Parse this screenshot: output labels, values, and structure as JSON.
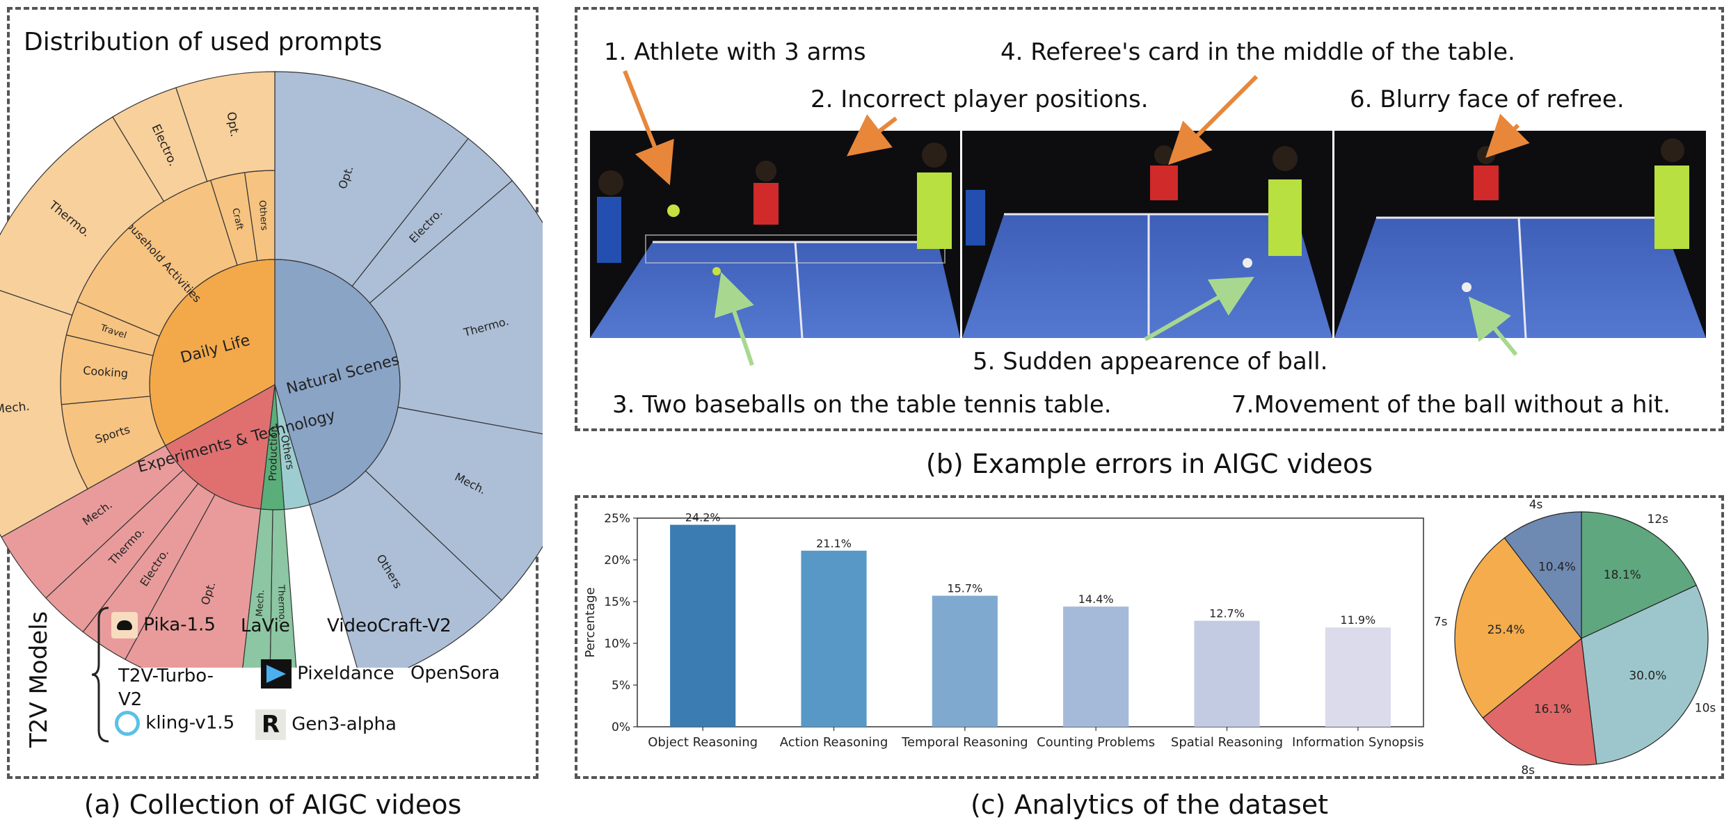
{
  "panel_a": {
    "title": "Distribution of used prompts",
    "caption": "(a) Collection of AIGC videos",
    "models_heading": "T2V Models",
    "models": [
      "Pika-1.5",
      "LaVie",
      "VideoCraft-V2",
      "T2V-Turbo-\nV2",
      "Pixeldance",
      "OpenSora",
      "kling-v1.5",
      "Gen3-alpha"
    ]
  },
  "panel_b": {
    "caption": "(b) Example errors in AIGC videos",
    "errors": [
      "1. Athlete with 3 arms",
      "2. Incorrect player positions.",
      "3. Two baseballs on the table tennis table.",
      "4. Referee's card in the middle of the table.",
      "5. Sudden appearence of ball.",
      "6. Blurry face of refree.",
      "7.Movement of the ball without a hit."
    ]
  },
  "panel_c": {
    "caption": "(c) Analytics of the dataset"
  },
  "chart_data": [
    {
      "type": "sunburst",
      "title": "Distribution of used prompts",
      "inner": [
        {
          "name": "Daily Life",
          "value": 33.1,
          "color": "#f3a94a"
        },
        {
          "name": "Natural Scenes",
          "value": 45.5,
          "color": "#8aa4c6"
        },
        {
          "name": "Others",
          "value": 3.3,
          "color": "#9dcdd0"
        },
        {
          "name": "Production",
          "value": 3.0,
          "color": "#5aae7a"
        },
        {
          "name": "Experiments & Technology",
          "value": 15.1,
          "color": "#e07070"
        }
      ],
      "outer": [
        {
          "name": "Sports",
          "parent": "Daily Life",
          "value": 5.6
        },
        {
          "name": "Cooking",
          "parent": "Daily Life",
          "value": 4.4
        },
        {
          "name": "Travel",
          "parent": "Daily Life",
          "value": 2.2
        },
        {
          "name": "Household Activities",
          "parent": "Daily Life",
          "value": 11.7
        },
        {
          "name": "Craft",
          "parent": "Daily Life",
          "value": 2.2
        },
        {
          "name": "Others",
          "parent": "Daily Life",
          "value": 1.9
        },
        {
          "name": "Opt.",
          "parent": "Natural Scenes",
          "value": 10.6
        },
        {
          "name": "Electro.",
          "parent": "Natural Scenes",
          "value": 3.1
        },
        {
          "name": "Thermo.",
          "parent": "Natural Scenes",
          "value": 14.2
        },
        {
          "name": "Mech.",
          "parent": "Natural Scenes",
          "value": 9.2
        },
        {
          "name": "Others",
          "parent": "Natural Scenes",
          "value": 8.4
        },
        {
          "name": "Thermo.",
          "parent": "Production",
          "value": 2.1
        },
        {
          "name": "Mech.",
          "parent": "Production",
          "value": 2.2
        },
        {
          "name": "Opt.",
          "parent": "Experiments & Technology",
          "value": 6.7
        },
        {
          "name": "Electro.",
          "parent": "Experiments & Technology",
          "value": 2.8
        },
        {
          "name": "Thermo.",
          "parent": "Experiments & Technology",
          "value": 2.8
        },
        {
          "name": "Mech.",
          "parent": "Experiments & Technology",
          "value": 4.2
        }
      ],
      "outer_wrap": [
        {
          "name": "Mech.",
          "parent": "Daily Life",
          "value": 9.4
        },
        {
          "name": "Thermo.",
          "parent": "Daily Life",
          "value": 7.8
        },
        {
          "name": "Electro.",
          "parent": "Daily Life",
          "value": 2.5
        },
        {
          "name": "Opt.",
          "parent": "Daily Life",
          "value": 3.6
        }
      ]
    },
    {
      "type": "bar",
      "categories": [
        "Object Reasoning",
        "Action Reasoning",
        "Temporal Reasoning",
        "Counting Problems",
        "Spatial Reasoning",
        "Information Synopsis"
      ],
      "values": [
        24.2,
        21.1,
        15.7,
        14.4,
        12.7,
        11.9
      ],
      "value_labels": [
        "24.2%",
        "21.1%",
        "15.7%",
        "14.4%",
        "12.7%",
        "11.9%"
      ],
      "colors": [
        "#3b7cb3",
        "#5898c6",
        "#80a9d0",
        "#a4bad8",
        "#c3cbe3",
        "#dcdbec"
      ],
      "ylabel": "Percentage",
      "ylim": [
        0,
        25
      ],
      "yticks": [
        0,
        5,
        10,
        15,
        20,
        25
      ],
      "ytick_labels": [
        "0%",
        "5%",
        "10%",
        "15%",
        "20%",
        "25%"
      ]
    },
    {
      "type": "pie",
      "slices": [
        {
          "name": "12s",
          "value": 18.1,
          "label": "18.1%",
          "color": "#5fa77e"
        },
        {
          "name": "10s",
          "value": 30.0,
          "label": "30.0%",
          "color": "#9dc6cc"
        },
        {
          "name": "8s",
          "value": 16.1,
          "label": "16.1%",
          "color": "#e06868"
        },
        {
          "name": "7s",
          "value": 25.4,
          "label": "25.4%",
          "color": "#f4ac4c"
        },
        {
          "name": "4s",
          "value": 10.4,
          "label": "10.4%",
          "color": "#6f8ab2"
        }
      ]
    }
  ]
}
